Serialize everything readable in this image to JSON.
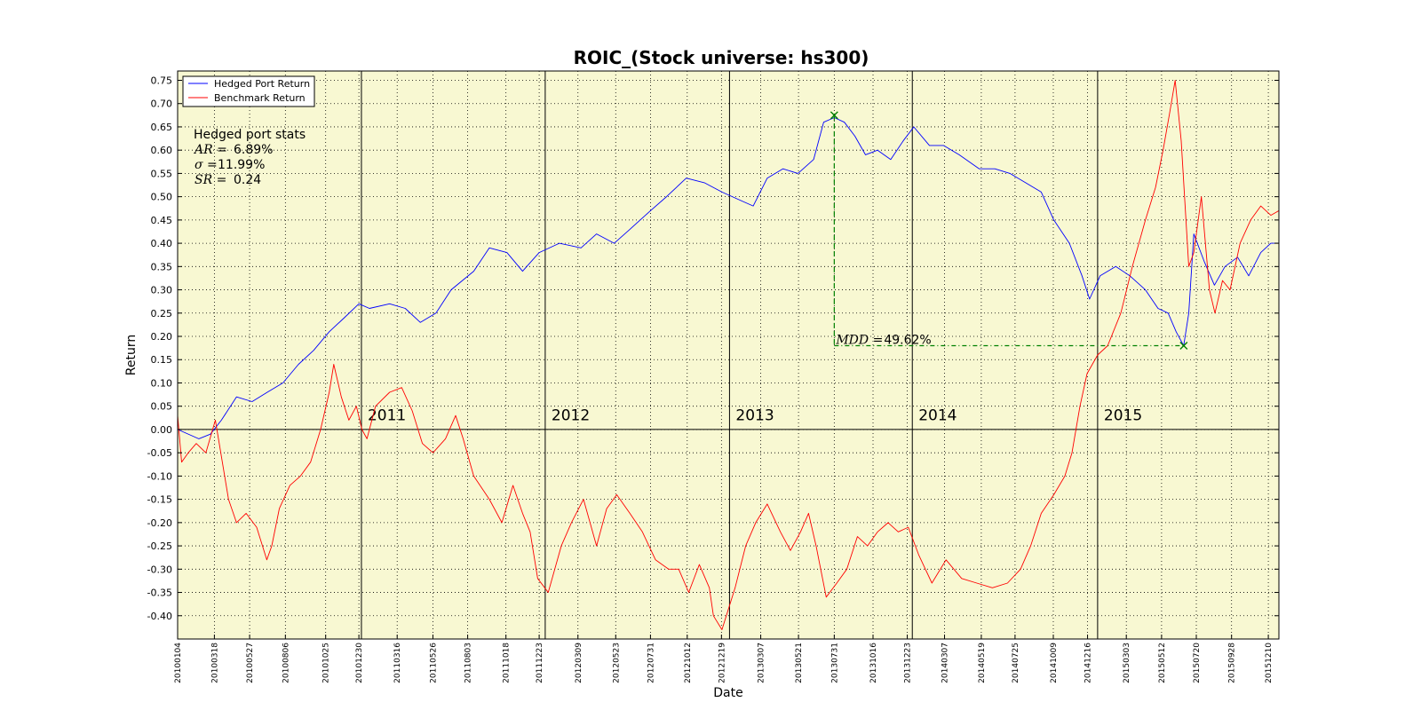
{
  "chart_data": {
    "type": "line",
    "title": "ROIC_(Stock universe: hs300)",
    "xlabel": "Date",
    "ylabel": "Return",
    "ylim": [
      -0.45,
      0.77
    ],
    "y_ticks": [
      "0.75",
      "0.70",
      "0.65",
      "0.60",
      "0.55",
      "0.50",
      "0.45",
      "0.40",
      "0.35",
      "0.30",
      "0.25",
      "0.20",
      "0.15",
      "0.10",
      "0.05",
      "0.00",
      "-0.05",
      "-0.10",
      "-0.15",
      "-0.20",
      "-0.25",
      "-0.30",
      "-0.35",
      "-0.40"
    ],
    "x_ticks": [
      "20100104",
      "20100318",
      "20100527",
      "20100806",
      "20101025",
      "20101230",
      "20110316",
      "20110526",
      "20110803",
      "20111018",
      "20111223",
      "20120309",
      "20120523",
      "20120731",
      "20121012",
      "20121219",
      "20130307",
      "20130521",
      "20130731",
      "20131016",
      "20131223",
      "20140307",
      "20140519",
      "20140725",
      "20141009",
      "20141216",
      "20150303",
      "20150512",
      "20150720",
      "20150928",
      "20151210"
    ],
    "year_marks": [
      {
        "label": "2011",
        "date": "2011-01-04"
      },
      {
        "label": "2012",
        "date": "2012-01-04"
      },
      {
        "label": "2013",
        "date": "2013-01-04"
      },
      {
        "label": "2014",
        "date": "2014-01-02"
      },
      {
        "label": "2015",
        "date": "2015-01-05"
      }
    ],
    "grid": true,
    "legend_position": "top-left",
    "background_color": "#f8f8d2",
    "series": [
      {
        "name": "Hedged Port Return",
        "color": "#0000ff",
        "x": [
          "2010-01-04",
          "2010-02-15",
          "2010-03-10",
          "2010-04-01",
          "2010-05-01",
          "2010-06-01",
          "2010-07-01",
          "2010-08-01",
          "2010-09-01",
          "2010-10-01",
          "2010-11-01",
          "2010-12-01",
          "2010-12-30",
          "2011-01-20",
          "2011-03-01",
          "2011-04-01",
          "2011-05-01",
          "2011-06-01",
          "2011-07-01",
          "2011-08-15",
          "2011-09-15",
          "2011-10-20",
          "2011-11-20",
          "2011-12-23",
          "2012-02-01",
          "2012-03-15",
          "2012-04-15",
          "2012-05-20",
          "2012-06-20",
          "2012-07-31",
          "2012-09-01",
          "2012-10-10",
          "2012-11-15",
          "2012-12-20",
          "2013-01-30",
          "2013-02-20",
          "2013-03-20",
          "2013-04-20",
          "2013-05-20",
          "2013-06-20",
          "2013-07-10",
          "2013-07-31",
          "2013-08-20",
          "2013-09-10",
          "2013-10-01",
          "2013-10-25",
          "2013-11-20",
          "2013-12-15",
          "2014-01-05",
          "2014-02-05",
          "2014-03-05",
          "2014-04-05",
          "2014-05-15",
          "2014-06-15",
          "2014-07-15",
          "2014-08-15",
          "2014-09-15",
          "2014-10-10",
          "2014-11-10",
          "2014-12-05",
          "2014-12-20",
          "2015-01-10",
          "2015-02-10",
          "2015-03-10",
          "2015-04-10",
          "2015-05-05",
          "2015-05-25",
          "2015-06-10",
          "2015-06-25",
          "2015-07-05",
          "2015-07-15",
          "2015-08-05",
          "2015-08-25",
          "2015-09-15",
          "2015-10-10",
          "2015-11-01",
          "2015-11-25",
          "2015-12-15",
          "2015-12-31"
        ],
        "values": [
          0.0,
          -0.02,
          -0.01,
          0.02,
          0.07,
          0.06,
          0.08,
          0.1,
          0.14,
          0.17,
          0.21,
          0.24,
          0.27,
          0.26,
          0.27,
          0.26,
          0.23,
          0.25,
          0.3,
          0.34,
          0.39,
          0.38,
          0.34,
          0.38,
          0.4,
          0.39,
          0.42,
          0.4,
          0.43,
          0.47,
          0.5,
          0.54,
          0.53,
          0.51,
          0.49,
          0.48,
          0.54,
          0.56,
          0.55,
          0.58,
          0.66,
          0.67,
          0.66,
          0.63,
          0.59,
          0.6,
          0.58,
          0.62,
          0.65,
          0.61,
          0.61,
          0.59,
          0.56,
          0.56,
          0.55,
          0.53,
          0.51,
          0.45,
          0.4,
          0.33,
          0.28,
          0.33,
          0.35,
          0.33,
          0.3,
          0.26,
          0.25,
          0.21,
          0.18,
          0.25,
          0.42,
          0.36,
          0.31,
          0.35,
          0.37,
          0.33,
          0.38,
          0.4,
          0.4
        ]
      },
      {
        "name": "Benchmark Return",
        "color": "#ff0000",
        "x": [
          "2010-01-04",
          "2010-01-12",
          "2010-01-25",
          "2010-02-10",
          "2010-03-01",
          "2010-03-20",
          "2010-04-15",
          "2010-05-01",
          "2010-05-20",
          "2010-06-10",
          "2010-06-30",
          "2010-07-10",
          "2010-07-25",
          "2010-08-15",
          "2010-09-05",
          "2010-09-25",
          "2010-10-15",
          "2010-11-01",
          "2010-11-10",
          "2010-11-25",
          "2010-12-10",
          "2010-12-25",
          "2011-01-05",
          "2011-01-15",
          "2011-02-01",
          "2011-03-01",
          "2011-03-25",
          "2011-04-15",
          "2011-05-05",
          "2011-05-26",
          "2011-06-20",
          "2011-07-10",
          "2011-07-25",
          "2011-08-15",
          "2011-09-15",
          "2011-10-10",
          "2011-11-01",
          "2011-11-20",
          "2011-12-05",
          "2011-12-20",
          "2012-01-10",
          "2012-02-05",
          "2012-02-25",
          "2012-03-20",
          "2012-04-15",
          "2012-05-05",
          "2012-05-25",
          "2012-06-20",
          "2012-07-15",
          "2012-08-10",
          "2012-09-05",
          "2012-09-25",
          "2012-10-15",
          "2012-11-05",
          "2012-11-25",
          "2012-12-03",
          "2012-12-20",
          "2013-01-15",
          "2013-02-05",
          "2013-02-25",
          "2013-03-20",
          "2013-04-15",
          "2013-05-05",
          "2013-05-25",
          "2013-06-10",
          "2013-06-25",
          "2013-07-15",
          "2013-08-05",
          "2013-08-25",
          "2013-09-15",
          "2013-10-05",
          "2013-10-25",
          "2013-11-15",
          "2013-12-05",
          "2013-12-25",
          "2014-01-15",
          "2014-02-10",
          "2014-03-10",
          "2014-04-10",
          "2014-05-10",
          "2014-06-10",
          "2014-07-10",
          "2014-08-05",
          "2014-08-25",
          "2014-09-15",
          "2014-10-10",
          "2014-11-01",
          "2014-11-15",
          "2014-12-01",
          "2014-12-15",
          "2015-01-05",
          "2015-01-25",
          "2015-02-20",
          "2015-03-15",
          "2015-04-10",
          "2015-04-30",
          "2015-05-15",
          "2015-05-28",
          "2015-06-08",
          "2015-06-20",
          "2015-07-05",
          "2015-07-15",
          "2015-07-30",
          "2015-08-15",
          "2015-08-26",
          "2015-09-10",
          "2015-09-25",
          "2015-10-15",
          "2015-11-05",
          "2015-11-25",
          "2015-12-15",
          "2015-12-31"
        ],
        "values": [
          0.03,
          -0.07,
          -0.05,
          -0.03,
          -0.05,
          0.02,
          -0.15,
          -0.2,
          -0.18,
          -0.21,
          -0.28,
          -0.25,
          -0.17,
          -0.12,
          -0.1,
          -0.07,
          0.0,
          0.08,
          0.14,
          0.07,
          0.02,
          0.05,
          0.0,
          -0.02,
          0.05,
          0.08,
          0.09,
          0.04,
          -0.03,
          -0.05,
          -0.02,
          0.03,
          -0.02,
          -0.1,
          -0.15,
          -0.2,
          -0.12,
          -0.18,
          -0.22,
          -0.32,
          -0.35,
          -0.25,
          -0.2,
          -0.15,
          -0.25,
          -0.17,
          -0.14,
          -0.18,
          -0.22,
          -0.28,
          -0.3,
          -0.3,
          -0.35,
          -0.29,
          -0.34,
          -0.4,
          -0.43,
          -0.34,
          -0.25,
          -0.2,
          -0.16,
          -0.22,
          -0.26,
          -0.22,
          -0.18,
          -0.25,
          -0.36,
          -0.33,
          -0.3,
          -0.23,
          -0.25,
          -0.22,
          -0.2,
          -0.22,
          -0.21,
          -0.27,
          -0.33,
          -0.28,
          -0.32,
          -0.33,
          -0.34,
          -0.33,
          -0.3,
          -0.25,
          -0.18,
          -0.14,
          -0.1,
          -0.05,
          0.05,
          0.12,
          0.16,
          0.18,
          0.25,
          0.35,
          0.45,
          0.52,
          0.6,
          0.68,
          0.75,
          0.62,
          0.35,
          0.38,
          0.5,
          0.3,
          0.25,
          0.32,
          0.3,
          0.4,
          0.45,
          0.48,
          0.46,
          0.47
        ]
      }
    ],
    "stats": {
      "heading": "Hedged port stats",
      "ar_label": "AR =",
      "ar_value": "6.89%",
      "sigma_label": "σ =",
      "sigma_value": "11.99%",
      "sr_label": "SR =",
      "sr_value": "0.24"
    },
    "mdd": {
      "label": "MDD =",
      "value": "49.62%",
      "peak_date": "2013-07-31",
      "peak_value": 0.675,
      "trough_date": "2015-06-25",
      "trough_value": 0.18,
      "color": "#008000"
    }
  }
}
